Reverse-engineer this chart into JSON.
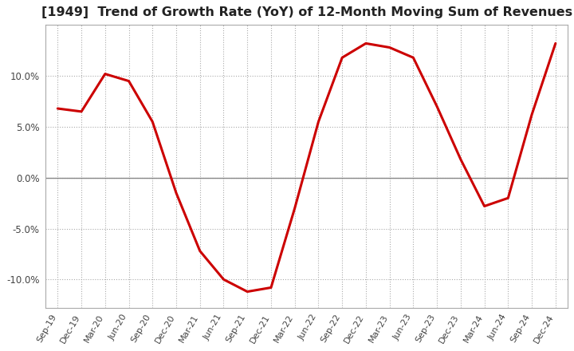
{
  "title": "[1949]  Trend of Growth Rate (YoY) of 12-Month Moving Sum of Revenues",
  "title_fontsize": 11.5,
  "line_color": "#cc0000",
  "line_width": 2.2,
  "background_color": "#ffffff",
  "grid_color": "#aaaaaa",
  "zero_line_color": "#888888",
  "border_color": "#aaaaaa",
  "ylim": [
    -0.128,
    0.15
  ],
  "yticks": [
    -0.1,
    -0.05,
    0.0,
    0.05,
    0.1
  ],
  "ytick_labels": [
    "-10.0%",
    "-5.0%",
    "0.0%",
    "5.0%",
    "10.0%"
  ],
  "x_labels": [
    "Sep-19",
    "Dec-19",
    "Mar-20",
    "Jun-20",
    "Sep-20",
    "Dec-20",
    "Mar-21",
    "Jun-21",
    "Sep-21",
    "Dec-21",
    "Mar-22",
    "Jun-22",
    "Sep-22",
    "Dec-22",
    "Mar-23",
    "Jun-23",
    "Sep-23",
    "Dec-23",
    "Mar-24",
    "Jun-24",
    "Sep-24",
    "Dec-24"
  ],
  "y_values": [
    0.068,
    0.065,
    0.102,
    0.095,
    0.055,
    -0.015,
    -0.072,
    -0.1,
    -0.112,
    -0.108,
    -0.03,
    0.055,
    0.118,
    0.132,
    0.128,
    0.118,
    0.07,
    0.018,
    -0.028,
    -0.02,
    0.062,
    0.132
  ]
}
